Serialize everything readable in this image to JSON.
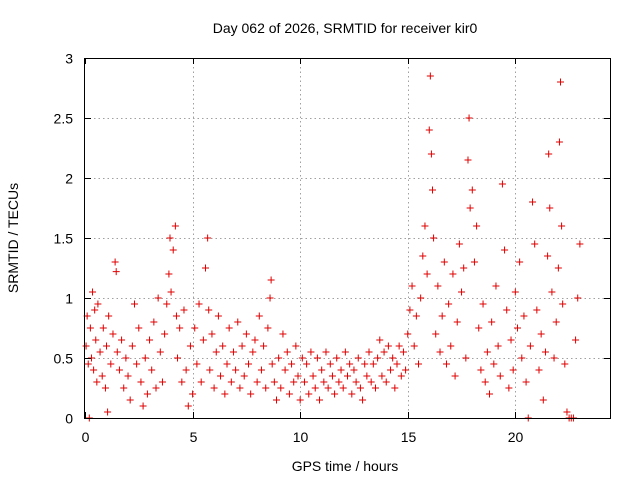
{
  "chart_data": {
    "type": "scatter",
    "title": "Day 062 of 2026, SRMTID for receiver kir0",
    "xlabel": "GPS time / hours",
    "ylabel": "SRMTID / TECUs",
    "xlim": [
      0,
      24.4
    ],
    "ylim": [
      0,
      3
    ],
    "xticks": [
      0,
      5,
      10,
      15,
      20
    ],
    "xtick_labels": [
      "0",
      "5",
      "10",
      "15",
      "20"
    ],
    "yticks": [
      0,
      0.5,
      1,
      1.5,
      2,
      2.5,
      3
    ],
    "ytick_labels": [
      "0",
      "0.5",
      "1",
      "1.5",
      "2",
      "2.5",
      "3"
    ],
    "grid": true,
    "marker": "plus",
    "series": [
      {
        "name": "SRMTID",
        "color": "#e00000",
        "points": [
          [
            0.05,
            0.6
          ],
          [
            0.1,
            0.85
          ],
          [
            0.15,
            0.45
          ],
          [
            0.2,
            0.0
          ],
          [
            0.25,
            0.75
          ],
          [
            0.3,
            0.5
          ],
          [
            0.35,
            1.05
          ],
          [
            0.4,
            0.4
          ],
          [
            0.45,
            0.9
          ],
          [
            0.5,
            0.65
          ],
          [
            0.55,
            0.3
          ],
          [
            0.6,
            0.95
          ],
          [
            0.7,
            0.55
          ],
          [
            0.8,
            0.35
          ],
          [
            0.85,
            0.75
          ],
          [
            0.95,
            0.25
          ],
          [
            1.0,
            0.6
          ],
          [
            1.05,
            0.05
          ],
          [
            1.1,
            0.85
          ],
          [
            1.2,
            0.45
          ],
          [
            1.3,
            0.7
          ],
          [
            1.4,
            1.3
          ],
          [
            1.45,
            1.22
          ],
          [
            1.5,
            0.55
          ],
          [
            1.6,
            0.4
          ],
          [
            1.7,
            0.65
          ],
          [
            1.8,
            0.25
          ],
          [
            1.9,
            0.5
          ],
          [
            2.0,
            0.35
          ],
          [
            2.1,
            0.15
          ],
          [
            2.2,
            0.6
          ],
          [
            2.3,
            0.95
          ],
          [
            2.4,
            0.45
          ],
          [
            2.5,
            0.75
          ],
          [
            2.6,
            0.3
          ],
          [
            2.7,
            0.1
          ],
          [
            2.8,
            0.5
          ],
          [
            2.9,
            0.2
          ],
          [
            3.0,
            0.65
          ],
          [
            3.1,
            0.4
          ],
          [
            3.2,
            0.8
          ],
          [
            3.3,
            0.25
          ],
          [
            3.4,
            1.0
          ],
          [
            3.5,
            0.55
          ],
          [
            3.6,
            0.3
          ],
          [
            3.7,
            0.7
          ],
          [
            3.8,
            0.95
          ],
          [
            3.9,
            1.2
          ],
          [
            3.95,
            1.5
          ],
          [
            4.0,
            1.05
          ],
          [
            4.1,
            1.4
          ],
          [
            4.2,
            1.6
          ],
          [
            4.25,
            0.85
          ],
          [
            4.3,
            0.5
          ],
          [
            4.4,
            0.75
          ],
          [
            4.5,
            0.3
          ],
          [
            4.6,
            0.9
          ],
          [
            4.7,
            0.4
          ],
          [
            4.8,
            0.1
          ],
          [
            4.9,
            0.6
          ],
          [
            5.0,
            0.2
          ],
          [
            5.1,
            0.75
          ],
          [
            5.2,
            0.45
          ],
          [
            5.3,
            0.95
          ],
          [
            5.4,
            0.3
          ],
          [
            5.5,
            0.65
          ],
          [
            5.6,
            1.25
          ],
          [
            5.7,
            1.5
          ],
          [
            5.75,
            0.9
          ],
          [
            5.8,
            0.4
          ],
          [
            5.9,
            0.7
          ],
          [
            6.0,
            0.25
          ],
          [
            6.1,
            0.55
          ],
          [
            6.2,
            0.85
          ],
          [
            6.3,
            0.35
          ],
          [
            6.4,
            0.6
          ],
          [
            6.5,
            0.2
          ],
          [
            6.6,
            0.45
          ],
          [
            6.7,
            0.75
          ],
          [
            6.8,
            0.3
          ],
          [
            6.9,
            0.55
          ],
          [
            7.0,
            0.4
          ],
          [
            7.1,
            0.8
          ],
          [
            7.2,
            0.25
          ],
          [
            7.3,
            0.6
          ],
          [
            7.4,
            0.35
          ],
          [
            7.5,
            0.7
          ],
          [
            7.6,
            0.45
          ],
          [
            7.7,
            0.2
          ],
          [
            7.8,
            0.55
          ],
          [
            7.9,
            0.65
          ],
          [
            8.0,
            0.3
          ],
          [
            8.1,
            0.85
          ],
          [
            8.2,
            0.4
          ],
          [
            8.3,
            0.6
          ],
          [
            8.4,
            0.25
          ],
          [
            8.5,
            0.75
          ],
          [
            8.6,
            1.0
          ],
          [
            8.65,
            1.15
          ],
          [
            8.7,
            0.45
          ],
          [
            8.8,
            0.3
          ],
          [
            8.9,
            0.15
          ],
          [
            9.0,
            0.5
          ],
          [
            9.1,
            0.25
          ],
          [
            9.2,
            0.7
          ],
          [
            9.3,
            0.4
          ],
          [
            9.4,
            0.55
          ],
          [
            9.5,
            0.2
          ],
          [
            9.6,
            0.45
          ],
          [
            9.7,
            0.3
          ],
          [
            9.8,
            0.6
          ],
          [
            9.9,
            0.35
          ],
          [
            10.0,
            0.15
          ],
          [
            10.1,
            0.5
          ],
          [
            10.2,
            0.3
          ],
          [
            10.3,
            0.45
          ],
          [
            10.4,
            0.2
          ],
          [
            10.5,
            0.55
          ],
          [
            10.6,
            0.35
          ],
          [
            10.7,
            0.25
          ],
          [
            10.8,
            0.5
          ],
          [
            10.9,
            0.15
          ],
          [
            11.0,
            0.4
          ],
          [
            11.1,
            0.3
          ],
          [
            11.2,
            0.55
          ],
          [
            11.3,
            0.25
          ],
          [
            11.4,
            0.45
          ],
          [
            11.5,
            0.35
          ],
          [
            11.6,
            0.2
          ],
          [
            11.7,
            0.5
          ],
          [
            11.8,
            0.3
          ],
          [
            11.9,
            0.4
          ],
          [
            12.0,
            0.25
          ],
          [
            12.1,
            0.55
          ],
          [
            12.2,
            0.35
          ],
          [
            12.3,
            0.45
          ],
          [
            12.4,
            0.2
          ],
          [
            12.5,
            0.4
          ],
          [
            12.6,
            0.3
          ],
          [
            12.7,
            0.5
          ],
          [
            12.8,
            0.25
          ],
          [
            12.9,
            0.15
          ],
          [
            13.0,
            0.45
          ],
          [
            13.1,
            0.35
          ],
          [
            13.2,
            0.55
          ],
          [
            13.3,
            0.3
          ],
          [
            13.4,
            0.45
          ],
          [
            13.5,
            0.25
          ],
          [
            13.6,
            0.5
          ],
          [
            13.7,
            0.65
          ],
          [
            13.8,
            0.35
          ],
          [
            13.9,
            0.55
          ],
          [
            14.0,
            0.3
          ],
          [
            14.1,
            0.6
          ],
          [
            14.2,
            0.4
          ],
          [
            14.3,
            0.5
          ],
          [
            14.4,
            0.25
          ],
          [
            14.5,
            0.45
          ],
          [
            14.6,
            0.6
          ],
          [
            14.7,
            0.35
          ],
          [
            14.8,
            0.55
          ],
          [
            14.9,
            0.4
          ],
          [
            15.0,
            0.7
          ],
          [
            15.1,
            0.9
          ],
          [
            15.2,
            1.1
          ],
          [
            15.3,
            0.6
          ],
          [
            15.4,
            0.85
          ],
          [
            15.5,
            0.45
          ],
          [
            15.6,
            1.0
          ],
          [
            15.7,
            1.35
          ],
          [
            15.8,
            1.6
          ],
          [
            15.9,
            1.2
          ],
          [
            16.0,
            2.4
          ],
          [
            16.05,
            2.85
          ],
          [
            16.1,
            2.2
          ],
          [
            16.15,
            1.9
          ],
          [
            16.2,
            1.5
          ],
          [
            16.3,
            0.7
          ],
          [
            16.4,
            1.1
          ],
          [
            16.5,
            0.55
          ],
          [
            16.6,
            0.85
          ],
          [
            16.7,
            1.3
          ],
          [
            16.8,
            0.45
          ],
          [
            16.9,
            0.95
          ],
          [
            17.0,
            0.6
          ],
          [
            17.1,
            1.2
          ],
          [
            17.2,
            0.35
          ],
          [
            17.3,
            0.8
          ],
          [
            17.4,
            1.45
          ],
          [
            17.5,
            1.05
          ],
          [
            17.6,
            1.25
          ],
          [
            17.7,
            0.5
          ],
          [
            17.8,
            2.15
          ],
          [
            17.85,
            2.5
          ],
          [
            17.9,
            1.75
          ],
          [
            18.0,
            1.9
          ],
          [
            18.1,
            1.3
          ],
          [
            18.2,
            1.6
          ],
          [
            18.3,
            0.75
          ],
          [
            18.4,
            0.4
          ],
          [
            18.5,
            0.95
          ],
          [
            18.6,
            0.3
          ],
          [
            18.7,
            0.55
          ],
          [
            18.8,
            0.2
          ],
          [
            18.9,
            0.8
          ],
          [
            19.0,
            0.45
          ],
          [
            19.1,
            1.1
          ],
          [
            19.2,
            0.6
          ],
          [
            19.3,
            0.35
          ],
          [
            19.4,
            1.95
          ],
          [
            19.5,
            1.4
          ],
          [
            19.6,
            0.9
          ],
          [
            19.7,
            0.25
          ],
          [
            19.8,
            0.65
          ],
          [
            19.9,
            0.4
          ],
          [
            20.0,
            1.05
          ],
          [
            20.1,
            0.75
          ],
          [
            20.2,
            1.3
          ],
          [
            20.3,
            0.5
          ],
          [
            20.4,
            0.85
          ],
          [
            20.5,
            0.3
          ],
          [
            20.6,
            0.0
          ],
          [
            20.7,
            0.6
          ],
          [
            20.8,
            1.8
          ],
          [
            20.9,
            1.45
          ],
          [
            21.0,
            0.9
          ],
          [
            21.1,
            0.4
          ],
          [
            21.2,
            0.7
          ],
          [
            21.3,
            0.15
          ],
          [
            21.4,
            0.55
          ],
          [
            21.5,
            1.35
          ],
          [
            21.55,
            2.2
          ],
          [
            21.6,
            1.75
          ],
          [
            21.7,
            1.05
          ],
          [
            21.8,
            0.5
          ],
          [
            21.9,
            0.8
          ],
          [
            22.0,
            1.25
          ],
          [
            22.05,
            2.3
          ],
          [
            22.1,
            2.8
          ],
          [
            22.15,
            1.6
          ],
          [
            22.2,
            0.95
          ],
          [
            22.3,
            0.45
          ],
          [
            22.4,
            0.05
          ],
          [
            22.5,
            0.0
          ],
          [
            22.6,
            0.0
          ],
          [
            22.7,
            0.0
          ],
          [
            22.8,
            0.65
          ],
          [
            22.9,
            1.0
          ],
          [
            23.0,
            1.45
          ]
        ]
      }
    ]
  }
}
